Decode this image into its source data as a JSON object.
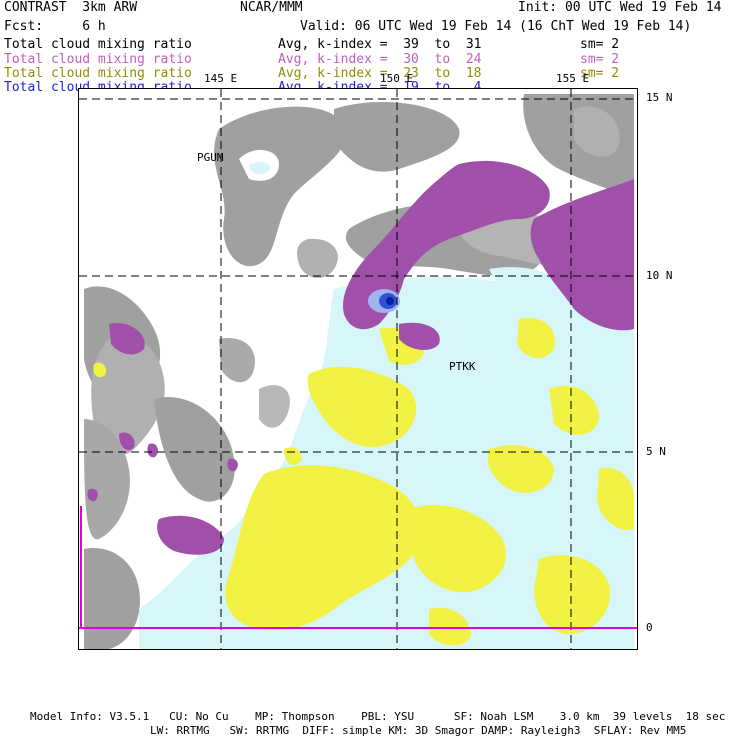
{
  "header": {
    "left1": "CONTRAST  3km ARW",
    "center1": "NCAR/MMM",
    "right1": "Init: 00 UTC Wed 19 Feb 14",
    "left2": "Fcst:     6 h",
    "right2": "Valid: 06 UTC Wed 19 Feb 14 (16 ChT Wed 19 Feb 14)"
  },
  "legend": [
    {
      "label": "Total cloud mixing ratio",
      "avg": "Avg, k-index =  39  to  31",
      "sm": "sm= 2",
      "color": "#000000"
    },
    {
      "label": "Total cloud mixing ratio",
      "avg": "Avg, k-index =  30  to  24",
      "sm": "sm= 2",
      "color": "#c060c0"
    },
    {
      "label": "Total cloud mixing ratio",
      "avg": "Avg, k-index =  23  to  18",
      "sm": "sm= 2",
      "color": "#909000"
    },
    {
      "label": "Total cloud mixing ratio",
      "avg": "Avg, k-index =  19  to   4",
      "sm": "",
      "color": "#2020e0"
    }
  ],
  "axes": {
    "lon_ticks": [
      "145 E",
      "150 E",
      "155 E"
    ],
    "lat_ticks": [
      "15 N",
      "10 N",
      "5 N",
      "0"
    ]
  },
  "stations": [
    "PGUM",
    "PTKK"
  ],
  "footer": {
    "line1": "Model Info: V3.5.1   CU: No Cu    MP: Thompson    PBL: YSU      SF: Noah LSM    3.0 km  39 levels  18 sec",
    "line2": "LW: RRTMG   SW: RRTMG  DIFF: simple KM: 3D Smagor DAMP: Rayleigh3  SFLAY: Rev MM5"
  },
  "colors": {
    "gray_cloud": "#a0a0a0",
    "purple_cloud": "#a050a8",
    "yellow_cloud": "#f2f244",
    "cyan_cloud": "#d6f6fa",
    "blue_core": "#2040d0",
    "equator_line": "#e000e0"
  }
}
